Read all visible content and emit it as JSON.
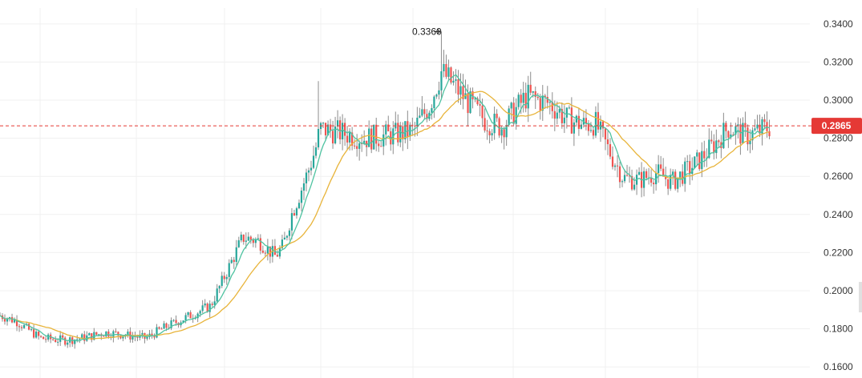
{
  "chart_data": {
    "type": "candlestick",
    "ylim": [
      0.155,
      0.345
    ],
    "yticks": [
      "0.3400",
      "0.3200",
      "0.3000",
      "0.2800",
      "0.2600",
      "0.2400",
      "0.2200",
      "0.2000",
      "0.1800",
      "0.1600"
    ],
    "last_price": {
      "label": "0.2865",
      "value": 0.2865
    },
    "high_marker": {
      "label": "0.3360",
      "value": 0.336
    },
    "colors": {
      "up": "#26a69a",
      "down": "#ef5350",
      "wick": "#8c8c8c",
      "ma_fast": "#4fc3a1",
      "ma_slow": "#e8b43a",
      "last_price": "#e53935",
      "grid": "#f0f0f0"
    },
    "close_path": [
      [
        0,
        0.187
      ],
      [
        0.02,
        0.184
      ],
      [
        0.05,
        0.175
      ],
      [
        0.08,
        0.174
      ],
      [
        0.1,
        0.175
      ],
      [
        0.13,
        0.178
      ],
      [
        0.15,
        0.177
      ],
      [
        0.18,
        0.175
      ],
      [
        0.2,
        0.18
      ],
      [
        0.23,
        0.186
      ],
      [
        0.26,
        0.192
      ],
      [
        0.28,
        0.21
      ],
      [
        0.3,
        0.228
      ],
      [
        0.32,
        0.226
      ],
      [
        0.34,
        0.218
      ],
      [
        0.35,
        0.224
      ],
      [
        0.36,
        0.24
      ],
      [
        0.38,
        0.262
      ],
      [
        0.39,
        0.275
      ],
      [
        0.395,
        0.285
      ],
      [
        0.42,
        0.283
      ],
      [
        0.45,
        0.28
      ],
      [
        0.47,
        0.281
      ],
      [
        0.49,
        0.282
      ],
      [
        0.51,
        0.284
      ],
      [
        0.53,
        0.297
      ],
      [
        0.545,
        0.315
      ],
      [
        0.56,
        0.308
      ],
      [
        0.58,
        0.298
      ],
      [
        0.6,
        0.289
      ],
      [
        0.62,
        0.286
      ],
      [
        0.65,
        0.302
      ],
      [
        0.68,
        0.298
      ],
      [
        0.7,
        0.29
      ],
      [
        0.72,
        0.287
      ],
      [
        0.735,
        0.288
      ],
      [
        0.75,
        0.275
      ],
      [
        0.77,
        0.259
      ],
      [
        0.79,
        0.258
      ],
      [
        0.81,
        0.262
      ],
      [
        0.83,
        0.257
      ],
      [
        0.86,
        0.267
      ],
      [
        0.88,
        0.276
      ],
      [
        0.9,
        0.286
      ],
      [
        0.92,
        0.281
      ],
      [
        0.95,
        0.286
      ]
    ]
  }
}
